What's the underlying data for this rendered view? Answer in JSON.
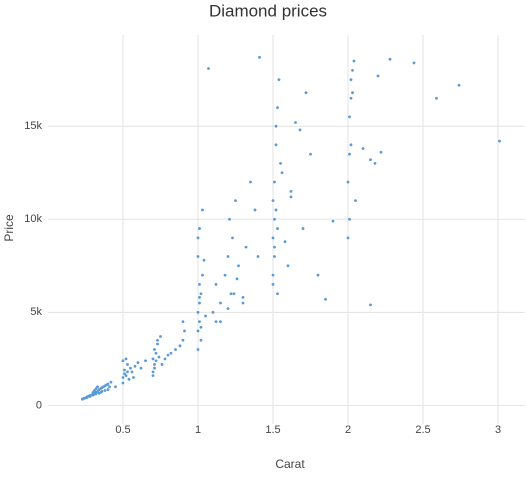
{
  "chart_data": {
    "type": "scatter",
    "title": "Diamond prices",
    "xlabel": "Carat",
    "ylabel": "Price",
    "color": "#5b9bd5",
    "grid": true,
    "xlim": [
      0,
      3.18
    ],
    "ylim": [
      -1000,
      19900
    ],
    "xticks": [
      0.5,
      1,
      1.5,
      2,
      2.5,
      3
    ],
    "yticks": [
      0,
      {
        "value": 5000,
        "label": "5k"
      },
      {
        "value": 10000,
        "label": "10k"
      },
      {
        "value": 15000,
        "label": "15k"
      }
    ],
    "x": [
      0.23,
      0.24,
      0.25,
      0.26,
      0.27,
      0.28,
      0.29,
      0.3,
      0.3,
      0.31,
      0.31,
      0.32,
      0.32,
      0.33,
      0.33,
      0.34,
      0.35,
      0.36,
      0.37,
      0.38,
      0.39,
      0.4,
      0.41,
      0.42,
      0.3,
      0.31,
      0.32,
      0.34,
      0.35,
      0.36,
      0.38,
      0.4,
      0.45,
      0.5,
      0.5,
      0.51,
      0.52,
      0.53,
      0.54,
      0.55,
      0.57,
      0.6,
      0.5,
      0.51,
      0.52,
      0.53,
      0.56,
      0.58,
      0.62,
      0.65,
      0.7,
      0.7,
      0.71,
      0.71,
      0.72,
      0.73,
      0.74,
      0.75,
      0.7,
      0.71,
      0.72,
      0.73,
      0.76,
      0.78,
      0.8,
      0.82,
      0.85,
      0.88,
      0.9,
      0.9,
      0.91,
      1.0,
      1.0,
      1.0,
      1.01,
      1.01,
      1.01,
      1.02,
      1.02,
      1.03,
      1.04,
      1.05,
      1.0,
      1.01,
      1.02,
      1.0,
      1.01,
      1.03,
      1.1,
      1.12,
      1.15,
      1.18,
      1.2,
      1.21,
      1.22,
      1.23,
      1.25,
      1.27,
      1.3,
      1.32,
      1.35,
      1.38,
      1.4,
      1.12,
      1.15,
      1.2,
      1.24,
      1.26,
      1.3,
      1.5,
      1.5,
      1.5,
      1.51,
      1.51,
      1.51,
      1.52,
      1.52,
      1.53,
      1.54,
      1.55,
      1.5,
      1.51,
      1.52,
      1.53,
      1.56,
      1.6,
      1.62,
      1.65,
      1.7,
      1.72,
      1.75,
      1.8,
      1.53,
      1.58,
      1.62,
      1.68,
      2.0,
      2.0,
      2.01,
      2.01,
      2.02,
      2.02,
      2.03,
      2.04,
      2.05,
      2.01,
      2.02,
      2.03,
      2.1,
      2.15,
      2.2,
      2.18,
      2.22,
      1.41,
      1.07,
      3.01,
      2.74,
      2.59,
      2.15,
      1.85,
      2.44,
      2.28,
      1.9,
      0.23,
      0.26,
      0.28
    ],
    "y": [
      330,
      380,
      400,
      450,
      500,
      520,
      560,
      600,
      700,
      650,
      800,
      700,
      900,
      750,
      1000,
      850,
      900,
      950,
      1000,
      1050,
      1100,
      1150,
      1000,
      1250,
      550,
      600,
      620,
      650,
      700,
      750,
      800,
      850,
      1000,
      1200,
      1500,
      1700,
      1600,
      1800,
      1400,
      2000,
      1500,
      2300,
      2400,
      1900,
      2500,
      2200,
      1800,
      2100,
      2000,
      2400,
      1800,
      2500,
      2200,
      3000,
      2800,
      3300,
      2600,
      3700,
      1600,
      2000,
      2400,
      3500,
      2200,
      2500,
      2700,
      2800,
      3000,
      3200,
      3500,
      4500,
      4000,
      3000,
      4000,
      5000,
      4500,
      5500,
      6500,
      3500,
      6000,
      7000,
      7800,
      4800,
      8000,
      5800,
      4200,
      9000,
      9500,
      10500,
      5000,
      6500,
      4500,
      7000,
      8000,
      10000,
      6000,
      9000,
      11000,
      7500,
      5500,
      8500,
      12000,
      10500,
      8000,
      4500,
      5500,
      5200,
      6000,
      6800,
      5800,
      7000,
      9000,
      11000,
      8000,
      10000,
      12000,
      14000,
      15000,
      16000,
      17500,
      13000,
      6500,
      8500,
      10500,
      9500,
      12500,
      7500,
      11500,
      15200,
      9500,
      16800,
      13500,
      7000,
      6000,
      8800,
      11200,
      14800,
      9000,
      12000,
      13500,
      15500,
      16500,
      17500,
      18000,
      18500,
      11000,
      10000,
      14000,
      16800,
      13800,
      13200,
      17700,
      13000,
      13600,
      18700,
      18100,
      14200,
      17200,
      16500,
      5400,
      5700,
      18400,
      18600,
      9900,
      350,
      420,
      480
    ]
  }
}
